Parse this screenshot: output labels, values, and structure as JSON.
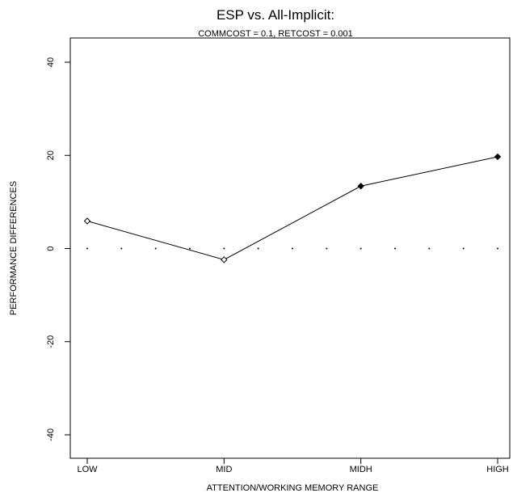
{
  "chart_data": {
    "type": "line",
    "title": "ESP vs. All-Implicit:",
    "subtitle": "COMMCOST = 0.1, RETCOST = 0.001",
    "xlabel": "ATTENTION/WORKING MEMORY RANGE",
    "ylabel": "PERFORMANCE DIFFERENCES",
    "categories": [
      "LOW",
      "MID",
      "MIDH",
      "HIGH"
    ],
    "ylim": [
      -40,
      40
    ],
    "yticks": [
      "-40",
      "-20",
      "0",
      "20",
      "40"
    ],
    "grid": false,
    "series": [
      {
        "values": [
          5.9,
          -2.4,
          13.4,
          19.7
        ],
        "markers": [
          "open-diamond",
          "open-diamond",
          "filled-diamond",
          "filled-diamond"
        ]
      }
    ],
    "reference_line": {
      "y": 0,
      "style": "dotted",
      "dot_count": 13
    }
  }
}
